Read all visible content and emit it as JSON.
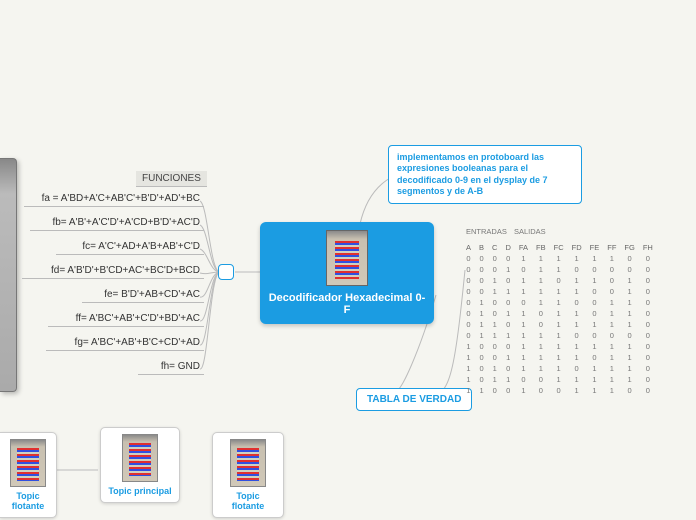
{
  "center": {
    "title": "Decodificador Hexadecimal 0-F"
  },
  "note": {
    "text": "implementamos en protoboard las expresiones booleanas para el decodificado 0-9 en el dysplay de 7 segmentos y de A-B"
  },
  "tabla": {
    "label": "TABLA DE VERDAD"
  },
  "funciones": {
    "label": "FUNCIONES",
    "items": [
      "fa = A'BD+A'C+AB'C'+B'D'+AD'+BC",
      "fb=  A'B'+A'C'D'+A'CD+B'D'+AC'D",
      "fc=  A'C'+AD+A'B+AB'+C'D",
      "fd=  A'B'D'+B'CD+AC'+BC'D+BCD",
      "fe=  B'D'+AB+CD'+AC",
      "ff=  A'BC'+AB'+C'D'+BD'+AC",
      "fg=  A'BC'+AB'+B'C+CD'+AD",
      "fh=  GND"
    ]
  },
  "truth": {
    "group1": "ENTRADAS",
    "group2": "SALIDAS",
    "headers": [
      "A",
      "B",
      "C",
      "D",
      "FA",
      "FB",
      "FC",
      "FD",
      "FE",
      "FF",
      "FG",
      "FH"
    ],
    "rows": [
      [
        0,
        0,
        0,
        0,
        1,
        1,
        1,
        1,
        1,
        1,
        0,
        0
      ],
      [
        0,
        0,
        0,
        1,
        0,
        1,
        1,
        0,
        0,
        0,
        0,
        0
      ],
      [
        0,
        0,
        1,
        0,
        1,
        1,
        0,
        1,
        1,
        0,
        1,
        0
      ],
      [
        0,
        0,
        1,
        1,
        1,
        1,
        1,
        1,
        0,
        0,
        1,
        0
      ],
      [
        0,
        1,
        0,
        0,
        0,
        1,
        1,
        0,
        0,
        1,
        1,
        0
      ],
      [
        0,
        1,
        0,
        1,
        1,
        0,
        1,
        1,
        0,
        1,
        1,
        0
      ],
      [
        0,
        1,
        1,
        0,
        1,
        0,
        1,
        1,
        1,
        1,
        1,
        0
      ],
      [
        0,
        1,
        1,
        1,
        1,
        1,
        1,
        0,
        0,
        0,
        0,
        0
      ],
      [
        1,
        0,
        0,
        0,
        1,
        1,
        1,
        1,
        1,
        1,
        1,
        0
      ],
      [
        1,
        0,
        0,
        1,
        1,
        1,
        1,
        1,
        0,
        1,
        1,
        0
      ],
      [
        1,
        0,
        1,
        0,
        1,
        1,
        1,
        0,
        1,
        1,
        1,
        0
      ],
      [
        1,
        0,
        1,
        1,
        0,
        0,
        1,
        1,
        1,
        1,
        1,
        0
      ],
      [
        1,
        1,
        0,
        0,
        1,
        0,
        0,
        1,
        1,
        1,
        0,
        0
      ]
    ]
  },
  "topics": {
    "t1": "Topic flotante",
    "t2": "Topic principal",
    "t3": "Topic flotante"
  },
  "colors": {
    "accent": "#1b9ce2",
    "bg": "#f5f5f0",
    "line": "#bbbbbb"
  }
}
